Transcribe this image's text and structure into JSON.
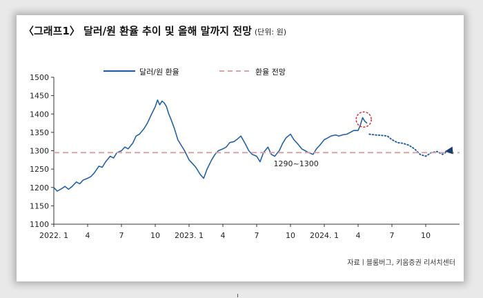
{
  "chart_data": {
    "type": "line",
    "title": "〈그래프1〉 달러/원 환율 추이 및 올해 말까지 전망",
    "unit_label": "(단위: 원)",
    "ylim": [
      1100,
      1500
    ],
    "yticks": [
      1100,
      1150,
      1200,
      1250,
      1300,
      1350,
      1400,
      1450,
      1500
    ],
    "xlim": [
      0,
      36
    ],
    "xticks": [
      {
        "pos": 0,
        "label": "2022. 1"
      },
      {
        "pos": 3,
        "label": "4"
      },
      {
        "pos": 6,
        "label": "7"
      },
      {
        "pos": 9,
        "label": "10"
      },
      {
        "pos": 12,
        "label": "2023. 1"
      },
      {
        "pos": 15,
        "label": "4"
      },
      {
        "pos": 18,
        "label": "7"
      },
      {
        "pos": 21,
        "label": "10"
      },
      {
        "pos": 24,
        "label": "2024. 1"
      },
      {
        "pos": 27,
        "label": "4"
      },
      {
        "pos": 30,
        "label": "7"
      },
      {
        "pos": 33,
        "label": "10"
      }
    ],
    "series": [
      {
        "name": "달러/원 환율",
        "color": "#2360a5",
        "style": "solid",
        "x": [
          0,
          0.3,
          0.6,
          1,
          1.3,
          1.6,
          2,
          2.3,
          2.6,
          3,
          3.3,
          3.6,
          4,
          4.3,
          4.6,
          5,
          5.3,
          5.6,
          6,
          6.3,
          6.6,
          7,
          7.3,
          7.6,
          8,
          8.3,
          8.6,
          9,
          9.2,
          9.4,
          9.6,
          9.8,
          10,
          10.2,
          10.4,
          10.7,
          11,
          11.3,
          11.6,
          12,
          12.3,
          12.6,
          13,
          13.3,
          13.6,
          14,
          14.3,
          14.6,
          15,
          15.3,
          15.6,
          16,
          16.3,
          16.6,
          17,
          17.3,
          17.6,
          18,
          18.3,
          18.6,
          19,
          19.3,
          19.6,
          20,
          20.3,
          20.6,
          21,
          21.3,
          21.6,
          22,
          22.3,
          22.6,
          23,
          23.3,
          23.6,
          24,
          24.3,
          24.6,
          25,
          25.3,
          25.6,
          26,
          26.3,
          26.6,
          27,
          27.2,
          27.4,
          27.6,
          27.8
        ],
        "values": [
          1200,
          1190,
          1195,
          1203,
          1195,
          1202,
          1215,
          1210,
          1220,
          1225,
          1230,
          1240,
          1258,
          1255,
          1270,
          1285,
          1280,
          1295,
          1300,
          1310,
          1305,
          1320,
          1340,
          1345,
          1360,
          1375,
          1395,
          1420,
          1438,
          1425,
          1435,
          1430,
          1420,
          1400,
          1385,
          1360,
          1330,
          1315,
          1300,
          1275,
          1265,
          1255,
          1235,
          1225,
          1250,
          1275,
          1290,
          1300,
          1305,
          1310,
          1322,
          1325,
          1332,
          1340,
          1318,
          1300,
          1290,
          1285,
          1270,
          1295,
          1310,
          1290,
          1285,
          1300,
          1320,
          1335,
          1345,
          1330,
          1320,
          1305,
          1300,
          1295,
          1290,
          1305,
          1315,
          1330,
          1335,
          1340,
          1343,
          1340,
          1343,
          1345,
          1350,
          1355,
          1355,
          1370,
          1390,
          1380,
          1375
        ]
      },
      {
        "name": "전망",
        "color": "#2360a5",
        "style": "dotted",
        "x": [
          28,
          28.5,
          29,
          29.6,
          30,
          30.5,
          31,
          31.5,
          32,
          32.5,
          33,
          33.5,
          34,
          34.5,
          35
        ],
        "values": [
          1345,
          1343,
          1342,
          1340,
          1330,
          1322,
          1320,
          1315,
          1305,
          1290,
          1285,
          1295,
          1298,
          1290,
          1300
        ]
      },
      {
        "name": "환율 전망",
        "color": "#d9a3a8",
        "style": "dashed",
        "x": [
          0,
          36
        ],
        "values": [
          1295,
          1295
        ]
      }
    ],
    "annotations": [
      {
        "text": "1290~1300",
        "x": 21.5,
        "y": 1265
      },
      {
        "type": "circle",
        "x": 27.5,
        "y": 1385
      }
    ],
    "legend": [
      "달러/원 환율",
      "환율 전망"
    ],
    "legend_position": "top"
  },
  "source_note": "자료ㅣ블룸버그, 키움증권 리서치센터",
  "arrow_color": "#1f3d6b"
}
